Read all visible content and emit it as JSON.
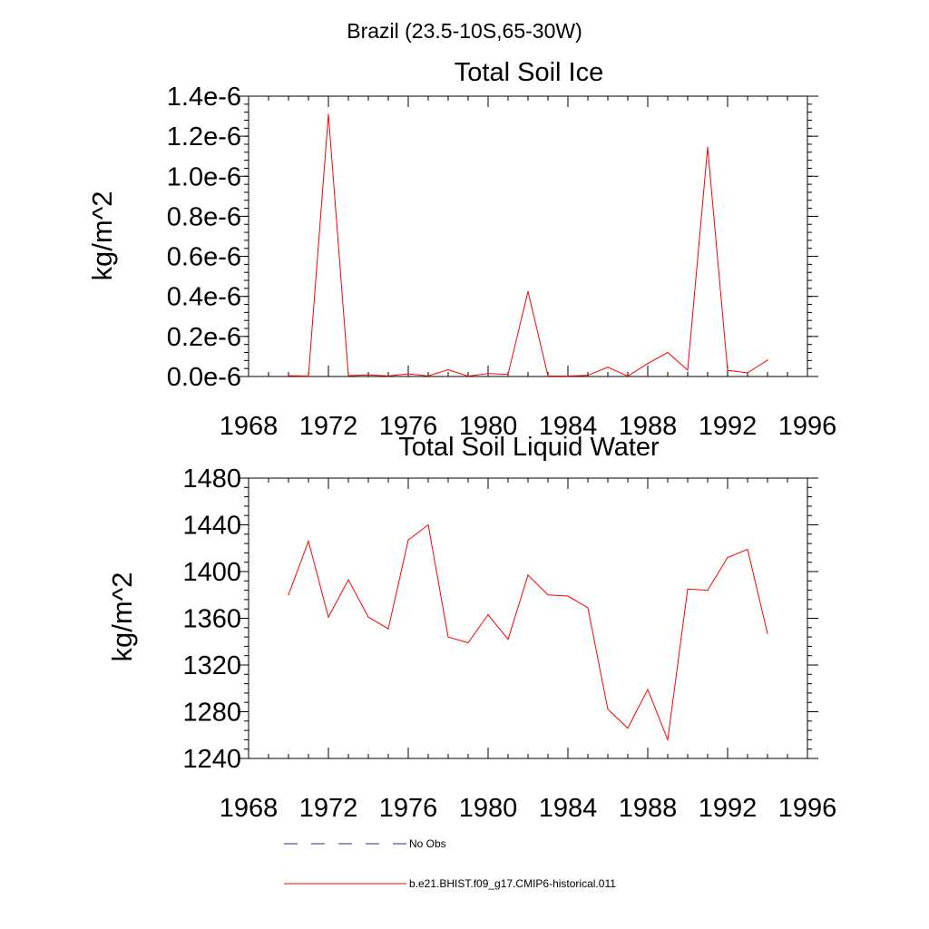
{
  "figure_title": "Brazil (23.5-10S,65-30W)",
  "legend": [
    {
      "label": "No Obs",
      "color": "#27336e",
      "style": "dashed"
    },
    {
      "label": "b.e21.BHIST.f09_g17.CMIP6-historical.011",
      "color": "#ff0000",
      "style": "solid"
    }
  ],
  "chart_data": [
    {
      "type": "line",
      "title": "Total Soil Ice",
      "xlabel": "",
      "ylabel": "kg/m^2",
      "xlim": [
        1968,
        1996
      ],
      "ylim": [
        0,
        1.4e-06
      ],
      "xticks": [
        1968,
        1972,
        1976,
        1980,
        1984,
        1988,
        1992,
        1996
      ],
      "xtick_labels": [
        "1968",
        "1972",
        "1976",
        "1980",
        "1984",
        "1988",
        "1992",
        "1996"
      ],
      "yticks": [
        0,
        2e-07,
        4e-07,
        6e-07,
        8e-07,
        1e-06,
        1.2e-06,
        1.4e-06
      ],
      "ytick_labels": [
        "0.0e-6",
        "0.2e-6",
        "0.4e-6",
        "0.6e-6",
        "0.8e-6",
        "1.0e-6",
        "1.2e-6",
        "1.4e-6"
      ],
      "grid": false,
      "x": [
        1970,
        1971,
        1972,
        1973,
        1974,
        1975,
        1976,
        1977,
        1978,
        1979,
        1980,
        1981,
        1982,
        1983,
        1984,
        1985,
        1986,
        1987,
        1988,
        1989,
        1990,
        1991,
        1992,
        1993,
        1994
      ],
      "series": [
        {
          "color": "#ff0000",
          "values": [
            4e-09,
            2e-09,
            1.31e-06,
            4e-09,
            8e-09,
            3e-09,
            1.3e-08,
            3e-09,
            3.4e-08,
            2e-09,
            1.5e-08,
            1.1e-08,
            4.25e-07,
            3e-09,
            2e-09,
            6e-09,
            4.6e-08,
            2e-09,
            6.5e-08,
            1.2e-07,
            3.2e-08,
            1.145e-06,
            3.1e-08,
            1.8e-08,
            8.2e-08
          ]
        }
      ]
    },
    {
      "type": "line",
      "title": "Total Soil Liquid Water",
      "xlabel": "",
      "ylabel": "kg/m^2",
      "xlim": [
        1968,
        1996
      ],
      "ylim": [
        1240,
        1480
      ],
      "xticks": [
        1968,
        1972,
        1976,
        1980,
        1984,
        1988,
        1992,
        1996
      ],
      "xtick_labels": [
        "1968",
        "1972",
        "1976",
        "1980",
        "1984",
        "1988",
        "1992",
        "1996"
      ],
      "yticks": [
        1240,
        1280,
        1320,
        1360,
        1400,
        1440,
        1480
      ],
      "ytick_labels": [
        "1240",
        "1280",
        "1320",
        "1360",
        "1400",
        "1440",
        "1480"
      ],
      "grid": false,
      "x": [
        1970,
        1971,
        1972,
        1973,
        1974,
        1975,
        1976,
        1977,
        1978,
        1979,
        1980,
        1981,
        1982,
        1983,
        1984,
        1985,
        1986,
        1987,
        1988,
        1989,
        1990,
        1991,
        1992,
        1993,
        1994
      ],
      "series": [
        {
          "color": "#ff0000",
          "values": [
            1380,
            1426,
            1361,
            1393,
            1361,
            1351,
            1427,
            1440,
            1344,
            1339,
            1363,
            1342,
            1397,
            1380,
            1379,
            1369,
            1282,
            1266,
            1299,
            1256,
            1385,
            1384,
            1412,
            1419,
            1347
          ]
        }
      ]
    }
  ]
}
